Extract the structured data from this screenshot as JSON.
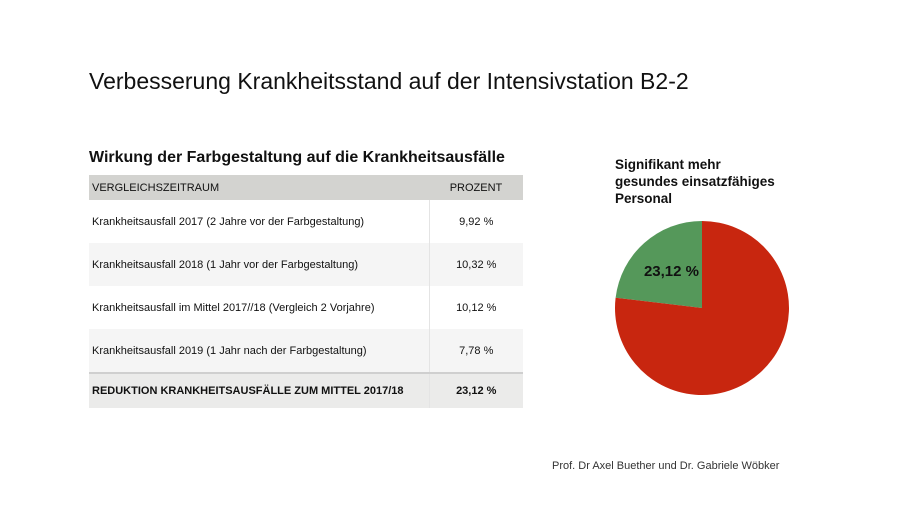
{
  "title": "Verbesserung Krankheitsstand auf der Intensivstation B2-2",
  "table_title": "Wirkung der Farbgestaltung auf die Krankheitsausfälle",
  "headers": [
    "VERGLEICHSZEITRAUM",
    "PROZENT"
  ],
  "rows": [
    {
      "label": "Krankheitsausfall 2017 (2 Jahre vor der Farbgestaltung)",
      "value": "9,92 %"
    },
    {
      "label": "Krankheitsausfall 2018 (1 Jahr vor der Farbgestaltung)",
      "value": "10,32 %"
    },
    {
      "label": "Krankheitsausfall im Mittel 2017//18 (Vergleich 2 Vorjahre)",
      "value": "10,12 %"
    },
    {
      "label": "Krankheitsausfall 2019 (1 Jahr nach der Farbgestaltung)",
      "value": "7,78 %"
    }
  ],
  "total": {
    "label": "REDUKTION KRANKHEITSAUSFÄLLE ZUM MITTEL 2017/18",
    "value": "23,12 %"
  },
  "credit": "Prof. Dr Axel Buether und Dr. Gabriele Wöbker",
  "chart_data": {
    "type": "pie",
    "title": [
      "Signifikant mehr",
      "gesundes einsatzfähiges",
      "Personal"
    ],
    "slices": [
      {
        "name": "Reduktion",
        "value": 23.12,
        "label": "23,12 %",
        "color": "#55985a"
      },
      {
        "name": "Rest",
        "value": 76.88,
        "color": "#c8260f"
      }
    ]
  }
}
